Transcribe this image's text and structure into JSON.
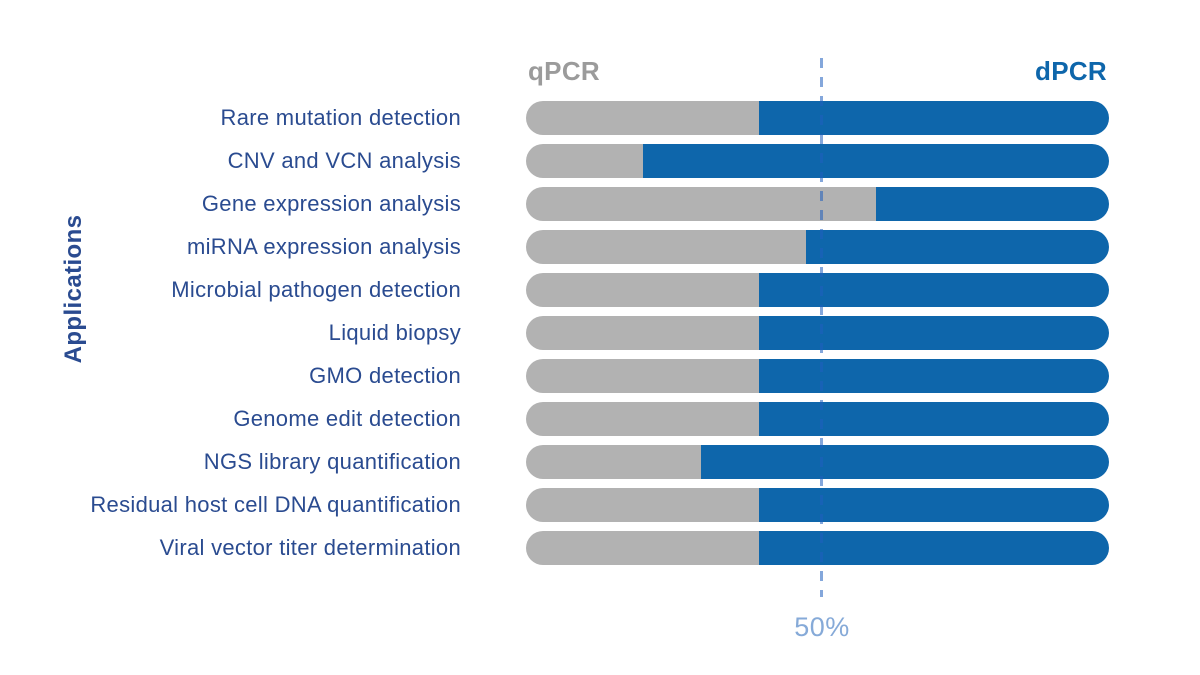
{
  "axis_title": "Applications",
  "headers": {
    "left": "qPCR",
    "right": "dPCR"
  },
  "reference": {
    "label": "50%"
  },
  "colors": {
    "qpcr_bar": "#b2b2b2",
    "dpcr_bar": "#0e66ab",
    "qpcr_header_text": "#9b9b9b",
    "dpcr_header_text": "#0e66ab",
    "row_label_text": "#2a4b90",
    "reference_line": "#86aad8",
    "background": "#ffffff"
  },
  "chart_data": {
    "type": "bar",
    "orientation": "horizontal",
    "stacked": true,
    "title": "",
    "xlabel": "",
    "ylabel": "Applications",
    "xlim": [
      0,
      100
    ],
    "grid": false,
    "legend_position": "top: qPCR left-aligned, dPCR right-aligned",
    "categories": [
      "Rare mutation detection",
      "CNV and VCN analysis",
      "Gene expression analysis",
      "miRNA expression analysis",
      "Microbial pathogen detection",
      "Liquid biopsy",
      "GMO detection",
      "Genome edit detection",
      "NGS library quantification",
      "Residual host cell DNA quantification",
      "Viral vector titer determination"
    ],
    "series": [
      {
        "name": "qPCR",
        "color": "#b2b2b2",
        "values": [
          40,
          20,
          60,
          48,
          40,
          40,
          40,
          40,
          30,
          40,
          40
        ]
      },
      {
        "name": "dPCR",
        "color": "#0e66ab",
        "values": [
          60,
          80,
          40,
          52,
          60,
          60,
          60,
          60,
          70,
          60,
          60
        ]
      }
    ],
    "reference_line": {
      "value": 50,
      "label": "50%"
    }
  }
}
